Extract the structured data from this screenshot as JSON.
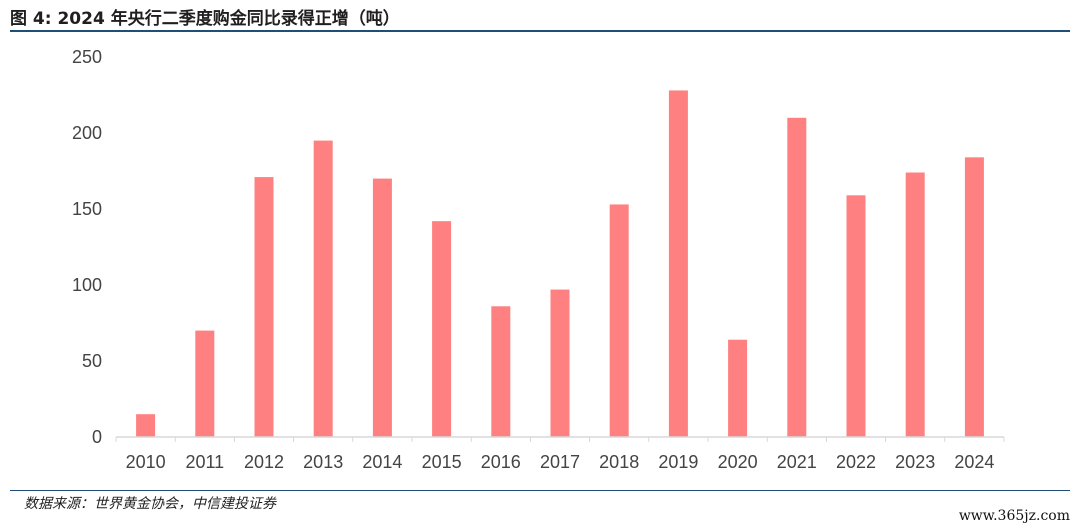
{
  "header": {
    "title": "图 4: 2024 年央行二季度购金同比录得正增（吨）"
  },
  "footer": {
    "source": "数据来源：世界黄金协会，中信建投证券",
    "watermark": "www.365jz.com"
  },
  "colors": {
    "bar": "#ff8080",
    "rule": "#1f4e79",
    "axis": "#d9d9d9"
  },
  "chart_data": {
    "type": "bar",
    "title": "",
    "xlabel": "",
    "ylabel": "",
    "categories": [
      "2010",
      "2011",
      "2012",
      "2013",
      "2014",
      "2015",
      "2016",
      "2017",
      "2018",
      "2019",
      "2020",
      "2021",
      "2022",
      "2023",
      "2024"
    ],
    "values": [
      15,
      70,
      171,
      195,
      170,
      142,
      86,
      97,
      153,
      228,
      64,
      210,
      159,
      174,
      184
    ],
    "ylim": [
      0,
      250
    ],
    "yticks": [
      0,
      50,
      100,
      150,
      200,
      250
    ],
    "grid": false,
    "legend": "none"
  }
}
